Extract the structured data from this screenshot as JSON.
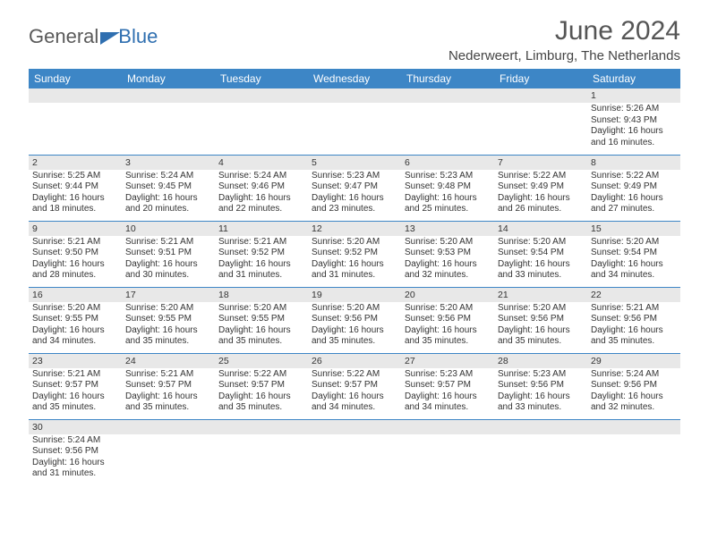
{
  "logo": {
    "part1": "General",
    "part2": "Blue"
  },
  "title": "June 2024",
  "location": "Nederweert, Limburg, The Netherlands",
  "colors": {
    "header_bg": "#3d86c6",
    "daynum_bg": "#e8e8e8",
    "rule": "#3d86c6"
  },
  "day_names": [
    "Sunday",
    "Monday",
    "Tuesday",
    "Wednesday",
    "Thursday",
    "Friday",
    "Saturday"
  ],
  "days": {
    "1": {
      "sunrise": "5:26 AM",
      "sunset": "9:43 PM",
      "daylight_h": 16,
      "daylight_m": 16
    },
    "2": {
      "sunrise": "5:25 AM",
      "sunset": "9:44 PM",
      "daylight_h": 16,
      "daylight_m": 18
    },
    "3": {
      "sunrise": "5:24 AM",
      "sunset": "9:45 PM",
      "daylight_h": 16,
      "daylight_m": 20
    },
    "4": {
      "sunrise": "5:24 AM",
      "sunset": "9:46 PM",
      "daylight_h": 16,
      "daylight_m": 22
    },
    "5": {
      "sunrise": "5:23 AM",
      "sunset": "9:47 PM",
      "daylight_h": 16,
      "daylight_m": 23
    },
    "6": {
      "sunrise": "5:23 AM",
      "sunset": "9:48 PM",
      "daylight_h": 16,
      "daylight_m": 25
    },
    "7": {
      "sunrise": "5:22 AM",
      "sunset": "9:49 PM",
      "daylight_h": 16,
      "daylight_m": 26
    },
    "8": {
      "sunrise": "5:22 AM",
      "sunset": "9:49 PM",
      "daylight_h": 16,
      "daylight_m": 27
    },
    "9": {
      "sunrise": "5:21 AM",
      "sunset": "9:50 PM",
      "daylight_h": 16,
      "daylight_m": 28
    },
    "10": {
      "sunrise": "5:21 AM",
      "sunset": "9:51 PM",
      "daylight_h": 16,
      "daylight_m": 30
    },
    "11": {
      "sunrise": "5:21 AM",
      "sunset": "9:52 PM",
      "daylight_h": 16,
      "daylight_m": 31
    },
    "12": {
      "sunrise": "5:20 AM",
      "sunset": "9:52 PM",
      "daylight_h": 16,
      "daylight_m": 31
    },
    "13": {
      "sunrise": "5:20 AM",
      "sunset": "9:53 PM",
      "daylight_h": 16,
      "daylight_m": 32
    },
    "14": {
      "sunrise": "5:20 AM",
      "sunset": "9:54 PM",
      "daylight_h": 16,
      "daylight_m": 33
    },
    "15": {
      "sunrise": "5:20 AM",
      "sunset": "9:54 PM",
      "daylight_h": 16,
      "daylight_m": 34
    },
    "16": {
      "sunrise": "5:20 AM",
      "sunset": "9:55 PM",
      "daylight_h": 16,
      "daylight_m": 34
    },
    "17": {
      "sunrise": "5:20 AM",
      "sunset": "9:55 PM",
      "daylight_h": 16,
      "daylight_m": 35
    },
    "18": {
      "sunrise": "5:20 AM",
      "sunset": "9:55 PM",
      "daylight_h": 16,
      "daylight_m": 35
    },
    "19": {
      "sunrise": "5:20 AM",
      "sunset": "9:56 PM",
      "daylight_h": 16,
      "daylight_m": 35
    },
    "20": {
      "sunrise": "5:20 AM",
      "sunset": "9:56 PM",
      "daylight_h": 16,
      "daylight_m": 35
    },
    "21": {
      "sunrise": "5:20 AM",
      "sunset": "9:56 PM",
      "daylight_h": 16,
      "daylight_m": 35
    },
    "22": {
      "sunrise": "5:21 AM",
      "sunset": "9:56 PM",
      "daylight_h": 16,
      "daylight_m": 35
    },
    "23": {
      "sunrise": "5:21 AM",
      "sunset": "9:57 PM",
      "daylight_h": 16,
      "daylight_m": 35
    },
    "24": {
      "sunrise": "5:21 AM",
      "sunset": "9:57 PM",
      "daylight_h": 16,
      "daylight_m": 35
    },
    "25": {
      "sunrise": "5:22 AM",
      "sunset": "9:57 PM",
      "daylight_h": 16,
      "daylight_m": 35
    },
    "26": {
      "sunrise": "5:22 AM",
      "sunset": "9:57 PM",
      "daylight_h": 16,
      "daylight_m": 34
    },
    "27": {
      "sunrise": "5:23 AM",
      "sunset": "9:57 PM",
      "daylight_h": 16,
      "daylight_m": 34
    },
    "28": {
      "sunrise": "5:23 AM",
      "sunset": "9:56 PM",
      "daylight_h": 16,
      "daylight_m": 33
    },
    "29": {
      "sunrise": "5:24 AM",
      "sunset": "9:56 PM",
      "daylight_h": 16,
      "daylight_m": 32
    },
    "30": {
      "sunrise": "5:24 AM",
      "sunset": "9:56 PM",
      "daylight_h": 16,
      "daylight_m": 31
    }
  },
  "labels": {
    "sunrise": "Sunrise:",
    "sunset": "Sunset:",
    "daylight_prefix": "Daylight:",
    "hours_word": "hours",
    "and_word": "and",
    "minutes_word": "minutes."
  },
  "grid": [
    [
      null,
      null,
      null,
      null,
      null,
      null,
      "1"
    ],
    [
      "2",
      "3",
      "4",
      "5",
      "6",
      "7",
      "8"
    ],
    [
      "9",
      "10",
      "11",
      "12",
      "13",
      "14",
      "15"
    ],
    [
      "16",
      "17",
      "18",
      "19",
      "20",
      "21",
      "22"
    ],
    [
      "23",
      "24",
      "25",
      "26",
      "27",
      "28",
      "29"
    ],
    [
      "30",
      null,
      null,
      null,
      null,
      null,
      null
    ]
  ]
}
